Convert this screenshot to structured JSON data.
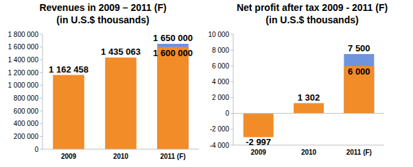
{
  "chart_data": [
    {
      "type": "bar",
      "title": "Revenues in 2009 – 2011 (F)",
      "subtitle": "(in U.S.$ thousands)",
      "categories": [
        "2009",
        "2010",
        "2011 (F)"
      ],
      "series": [
        {
          "color": "#f28c28",
          "values": [
            1162458,
            1435063,
            1600000
          ],
          "value_labels": [
            "1 162 458",
            "1 435 063",
            "1 600 000"
          ]
        },
        {
          "color": "#6f93dc",
          "values": [
            null,
            null,
            1650000
          ],
          "value_labels": [
            null,
            null,
            "1 650 000"
          ]
        }
      ],
      "ylim": [
        0,
        1800000
      ],
      "yticks": [
        0,
        {
          "value": 200000,
          "label": "200 000"
        },
        {
          "value": 400000,
          "label": "400 000"
        },
        {
          "value": 600000,
          "label": "600 000"
        },
        {
          "value": 800000,
          "label": "800 000"
        },
        {
          "value": 1000000,
          "label": "1 000 000"
        },
        {
          "value": 1200000,
          "label": "1 200 000"
        },
        {
          "value": 1400000,
          "label": "1 400 000"
        },
        {
          "value": 1600000,
          "label": "1 600 000"
        },
        {
          "value": 1800000,
          "label": "1 800 000"
        }
      ],
      "grid": false,
      "stacked": false,
      "data_labels": true
    },
    {
      "type": "bar",
      "title": "Net profit after tax 2009 - 2011 (F)",
      "subtitle": "(in U.S.$ thousands)",
      "categories": [
        "2009",
        "2010",
        "2011 (F)"
      ],
      "series": [
        {
          "color": "#f28c28",
          "values": [
            -2997,
            1302,
            6000
          ],
          "value_labels": [
            "-2 997",
            "1 302",
            "6 000"
          ]
        },
        {
          "color": "#6f93dc",
          "values": [
            null,
            null,
            7500
          ],
          "value_labels": [
            null,
            null,
            "7 500"
          ]
        }
      ],
      "ylim": [
        -4000,
        10000
      ],
      "yticks": [
        {
          "value": -4000,
          "label": "-4 000"
        },
        {
          "value": -2000,
          "label": "-2 000"
        },
        0,
        {
          "value": 2000,
          "label": "2 000"
        },
        {
          "value": 4000,
          "label": "4 000"
        },
        {
          "value": 6000,
          "label": "6 000"
        },
        {
          "value": 8000,
          "label": "8 000"
        },
        {
          "value": 10000,
          "label": "10 000"
        }
      ],
      "grid": false,
      "stacked": false,
      "data_labels": true
    }
  ]
}
